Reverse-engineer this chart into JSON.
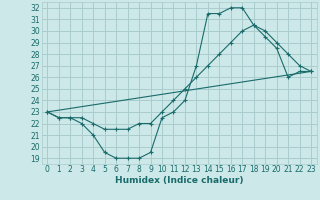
{
  "xlabel": "Humidex (Indice chaleur)",
  "bg_color": "#cce8e8",
  "grid_color": "#aacccc",
  "line_color": "#1a6b6b",
  "xlim": [
    -0.5,
    23.5
  ],
  "ylim": [
    18.5,
    32.5
  ],
  "yticks": [
    19,
    20,
    21,
    22,
    23,
    24,
    25,
    26,
    27,
    28,
    29,
    30,
    31,
    32
  ],
  "xticks": [
    0,
    1,
    2,
    3,
    4,
    5,
    6,
    7,
    8,
    9,
    10,
    11,
    12,
    13,
    14,
    15,
    16,
    17,
    18,
    19,
    20,
    21,
    22,
    23
  ],
  "line1_x": [
    0,
    1,
    2,
    3,
    4,
    5,
    6,
    7,
    8,
    9,
    10,
    11,
    12,
    13,
    14,
    15,
    16,
    17,
    18,
    19,
    20,
    21,
    22,
    23
  ],
  "line1_y": [
    23,
    22.5,
    22.5,
    22,
    21,
    19.5,
    19,
    19,
    19,
    19.5,
    22.5,
    23,
    24,
    27,
    31.5,
    31.5,
    32,
    32,
    30.5,
    29.5,
    28.5,
    26,
    26.5,
    26.5
  ],
  "line2_x": [
    0,
    1,
    2,
    3,
    4,
    5,
    6,
    7,
    8,
    9,
    10,
    11,
    12,
    13,
    14,
    15,
    16,
    17,
    18,
    19,
    20,
    21,
    22,
    23
  ],
  "line2_y": [
    23,
    22.5,
    22.5,
    22.5,
    22,
    21.5,
    21.5,
    21.5,
    22,
    22,
    23,
    24,
    25,
    26,
    27,
    28,
    29,
    30,
    30.5,
    30,
    29,
    28,
    27,
    26.5
  ],
  "line3_x": [
    0,
    23
  ],
  "line3_y": [
    23,
    26.5
  ],
  "tick_fontsize": 5.5,
  "xlabel_fontsize": 6.5,
  "lw": 0.8,
  "ms": 2.5
}
